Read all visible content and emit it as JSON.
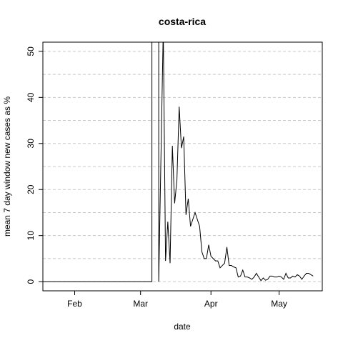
{
  "chart_data": {
    "type": "line",
    "title": "costa-rica",
    "xlabel": "date",
    "ylabel": "mean  7  day window new cases as %",
    "x_ticks": [
      "Feb",
      "Mar",
      "Apr",
      "May"
    ],
    "x_tick_dates": [
      "2020-02-01",
      "2020-03-01",
      "2020-04-01",
      "2020-05-01"
    ],
    "xlim": [
      "2020-01-18",
      "2020-05-20"
    ],
    "ylim": [
      -2,
      52
    ],
    "y_ticks": [
      0,
      10,
      20,
      30,
      40,
      50
    ],
    "grid": "horizontal dashed",
    "series": [
      {
        "x": [
          "2020-01-18",
          "2020-03-06",
          "2020-03-06",
          "2020-03-09",
          "2020-03-09",
          "2020-03-11",
          "2020-03-12",
          "2020-03-13",
          "2020-03-14",
          "2020-03-15",
          "2020-03-16",
          "2020-03-17",
          "2020-03-18",
          "2020-03-19",
          "2020-03-20",
          "2020-03-21",
          "2020-03-22",
          "2020-03-23",
          "2020-03-24",
          "2020-03-25",
          "2020-03-26",
          "2020-03-27",
          "2020-03-28",
          "2020-03-29",
          "2020-03-30",
          "2020-03-31",
          "2020-04-01",
          "2020-04-02",
          "2020-04-03",
          "2020-04-04",
          "2020-04-05",
          "2020-04-06",
          "2020-04-07",
          "2020-04-08",
          "2020-04-09",
          "2020-04-10",
          "2020-04-11",
          "2020-04-12",
          "2020-04-13",
          "2020-04-14",
          "2020-04-15",
          "2020-04-16",
          "2020-04-17",
          "2020-04-18",
          "2020-04-19",
          "2020-04-20",
          "2020-04-21",
          "2020-04-22",
          "2020-04-23",
          "2020-04-24",
          "2020-04-25",
          "2020-04-26",
          "2020-04-27",
          "2020-04-28",
          "2020-04-29",
          "2020-04-30",
          "2020-05-01",
          "2020-05-02",
          "2020-05-03",
          "2020-05-04",
          "2020-05-05",
          "2020-05-06",
          "2020-05-07",
          "2020-05-08",
          "2020-05-09",
          "2020-05-10",
          "2020-05-11",
          "2020-05-12",
          "2020-05-13",
          "2020-05-14",
          "2020-05-15",
          "2020-05-16"
        ],
        "y": [
          0,
          0,
          55,
          55,
          0,
          55,
          4.5,
          13,
          4,
          29.5,
          17,
          22,
          38,
          29,
          31.5,
          14.5,
          18,
          12,
          13.5,
          15,
          13.5,
          12,
          6.5,
          5,
          5,
          8,
          5.5,
          5,
          4.5,
          4.5,
          3,
          3.5,
          4,
          7.5,
          3.5,
          3.5,
          3.2,
          3,
          1,
          1.2,
          2.5,
          1,
          1,
          0.8,
          0.5,
          1,
          1.8,
          1,
          0.2,
          0.8,
          0.3,
          0.5,
          1.2,
          1.2,
          1,
          1,
          1.2,
          1,
          0.5,
          1.8,
          0.8,
          0.8,
          1.2,
          1,
          1.5,
          1.2,
          0.5,
          1.2,
          1.8,
          1.8,
          1.5,
          1.2
        ]
      }
    ]
  }
}
